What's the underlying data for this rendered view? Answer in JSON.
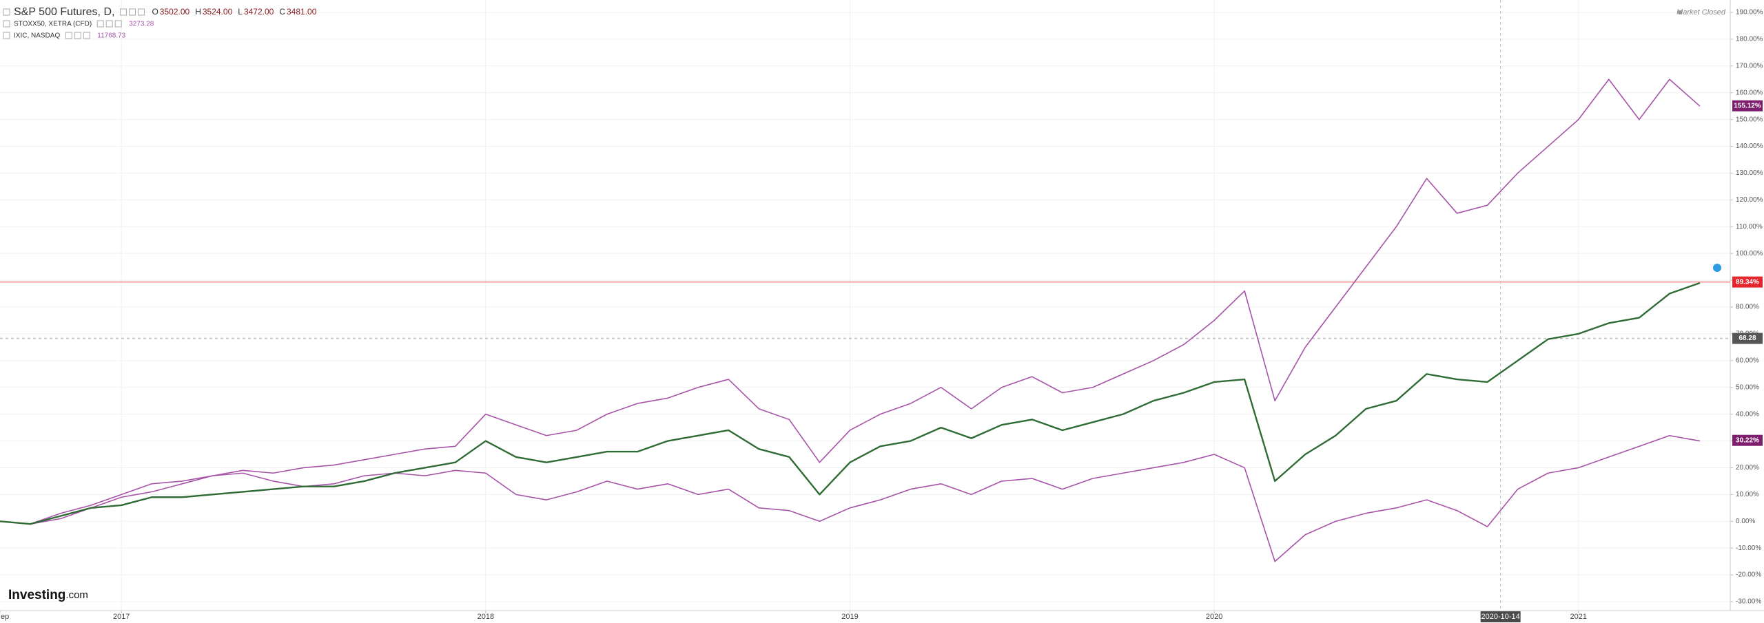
{
  "chart_data": {
    "type": "line",
    "status": "Market Closed",
    "watermark": [
      "Investing",
      ".com"
    ],
    "ohlc": [
      {
        "label": "O",
        "value": "3502.00"
      },
      {
        "label": "H",
        "value": "3524.00"
      },
      {
        "label": "L",
        "value": "3472.00"
      },
      {
        "label": "C",
        "value": "3481.00"
      }
    ],
    "x": [
      "2016-09",
      "2016-10",
      "2016-11",
      "2016-12",
      "2017-01",
      "2017-02",
      "2017-03",
      "2017-04",
      "2017-05",
      "2017-06",
      "2017-07",
      "2017-08",
      "2017-09",
      "2017-10",
      "2017-11",
      "2017-12",
      "2018-01",
      "2018-02",
      "2018-03",
      "2018-04",
      "2018-05",
      "2018-06",
      "2018-07",
      "2018-08",
      "2018-09",
      "2018-10",
      "2018-11",
      "2018-12",
      "2019-01",
      "2019-02",
      "2019-03",
      "2019-04",
      "2019-05",
      "2019-06",
      "2019-07",
      "2019-08",
      "2019-09",
      "2019-10",
      "2019-11",
      "2019-12",
      "2020-01",
      "2020-02",
      "2020-03",
      "2020-04",
      "2020-05",
      "2020-06",
      "2020-07",
      "2020-08",
      "2020-09",
      "2020-10",
      "2020-11",
      "2020-12",
      "2021-01",
      "2021-02",
      "2021-03",
      "2021-04",
      "2021-05"
    ],
    "series": [
      {
        "name": "S&P 500 Futures, D,",
        "color": "#2f6b34",
        "values": [
          0,
          -1,
          2,
          5,
          6,
          9,
          9,
          10,
          11,
          12,
          13,
          13,
          15,
          18,
          20,
          22,
          30,
          24,
          22,
          24,
          26,
          26,
          30,
          32,
          34,
          27,
          24,
          10,
          22,
          28,
          30,
          35,
          31,
          36,
          38,
          34,
          37,
          40,
          45,
          48,
          52,
          53,
          15,
          25,
          32,
          42,
          45,
          55,
          53,
          52,
          60,
          68,
          70,
          74,
          76,
          85,
          89
        ]
      },
      {
        "name": "STOXX50, XETRA (CFD)",
        "color": "#a653a8",
        "last": 3273.28,
        "values": [
          0,
          -1,
          1,
          5,
          9,
          11,
          14,
          17,
          18,
          15,
          13,
          14,
          17,
          18,
          17,
          19,
          18,
          10,
          8,
          11,
          15,
          12,
          14,
          10,
          12,
          5,
          4,
          0,
          5,
          8,
          12,
          14,
          10,
          15,
          16,
          12,
          16,
          18,
          20,
          22,
          25,
          20,
          -15,
          -5,
          0,
          3,
          5,
          8,
          4,
          -2,
          12,
          18,
          20,
          24,
          28,
          32,
          30
        ]
      },
      {
        "name": "IXIC, NASDAQ",
        "color": "#a653a8",
        "last": 11768.73,
        "values": [
          0,
          -1,
          3,
          6,
          10,
          14,
          15,
          17,
          19,
          18,
          20,
          21,
          23,
          25,
          27,
          28,
          40,
          36,
          32,
          34,
          40,
          44,
          46,
          50,
          53,
          42,
          38,
          22,
          34,
          40,
          44,
          50,
          42,
          50,
          54,
          48,
          50,
          55,
          60,
          66,
          75,
          86,
          45,
          65,
          80,
          95,
          110,
          128,
          115,
          118,
          130,
          140,
          150,
          165,
          150,
          165,
          155
        ]
      }
    ],
    "xlim": [
      "2016-09",
      "2021-06"
    ],
    "xticks": [
      {
        "value": "2016-09",
        "label": "ep"
      },
      {
        "value": "2017-01",
        "label": "2017"
      },
      {
        "value": "2018-01",
        "label": "2018"
      },
      {
        "value": "2019-01",
        "label": "2019"
      },
      {
        "value": "2020-01",
        "label": "2020"
      },
      {
        "value": "2021-01",
        "label": "2021"
      }
    ],
    "ylim": [
      -30,
      190
    ],
    "yticks": [
      {
        "value": -30,
        "label": "-30.00%"
      },
      {
        "value": -20,
        "label": "-20.00%"
      },
      {
        "value": -10,
        "label": "-10.00%"
      },
      {
        "value": 0,
        "label": "0.00%"
      },
      {
        "value": 10,
        "label": "10.00%"
      },
      {
        "value": 20,
        "label": "20.00%"
      },
      {
        "value": 30,
        "label": "30.00%"
      },
      {
        "value": 40,
        "label": "40.00%"
      },
      {
        "value": 50,
        "label": "50.00%"
      },
      {
        "value": 60,
        "label": "60.00%"
      },
      {
        "value": 70,
        "label": "70.00%"
      },
      {
        "value": 80,
        "label": "80.00%"
      },
      {
        "value": 90,
        "label": "90.00%"
      },
      {
        "value": 100,
        "label": "100.00%"
      },
      {
        "value": 110,
        "label": "110.00%"
      },
      {
        "value": 120,
        "label": "120.00%"
      },
      {
        "value": 130,
        "label": "130.00%"
      },
      {
        "value": 140,
        "label": "140.00%"
      },
      {
        "value": 150,
        "label": "150.00%"
      },
      {
        "value": 160,
        "label": "160.00%"
      },
      {
        "value": 170,
        "label": "170.00%"
      },
      {
        "value": 180,
        "label": "180.00%"
      },
      {
        "value": 190,
        "label": "190.00%"
      }
    ],
    "grid": true,
    "markers": [
      {
        "value": 155.12,
        "label": "155.12%",
        "color": "#7e1f6e"
      },
      {
        "value": 89.34,
        "label": "89.34%",
        "color": "#e5262c",
        "line": "solid"
      },
      {
        "value": 68.28,
        "color": "#555555",
        "line": "dashed"
      },
      {
        "value": 30.22,
        "label": "30.22%",
        "color": "#7e1f6e"
      }
    ],
    "crosshair": "2020-10-14"
  }
}
